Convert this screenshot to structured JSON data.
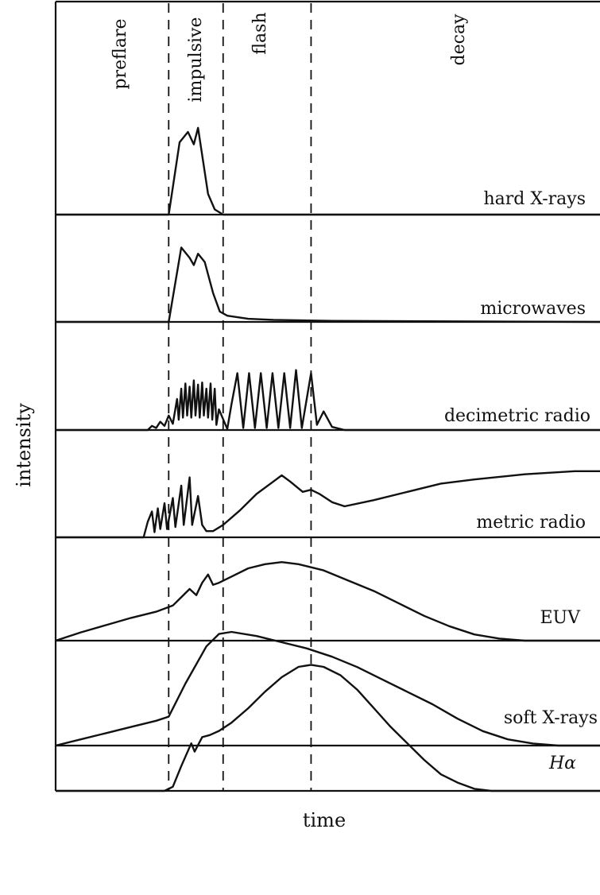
{
  "chart_data": {
    "type": "line",
    "xlabel": "time",
    "ylabel": "intensity",
    "phases": [
      "preflare",
      "impulsive",
      "flash",
      "decay"
    ],
    "panels": [
      {
        "label": "hard X-rays",
        "points": [
          [
            0,
            0
          ],
          [
            120,
            0
          ],
          [
            135,
            0
          ],
          [
            148,
            70
          ],
          [
            158,
            80
          ],
          [
            165,
            68
          ],
          [
            170,
            84
          ],
          [
            182,
            20
          ],
          [
            190,
            5
          ],
          [
            200,
            0
          ],
          [
            650,
            0
          ]
        ]
      },
      {
        "label": "microwaves",
        "points": [
          [
            0,
            0
          ],
          [
            120,
            0
          ],
          [
            135,
            0
          ],
          [
            150,
            72
          ],
          [
            160,
            62
          ],
          [
            165,
            55
          ],
          [
            170,
            66
          ],
          [
            178,
            58
          ],
          [
            188,
            28
          ],
          [
            196,
            10
          ],
          [
            205,
            6
          ],
          [
            230,
            3
          ],
          [
            260,
            2
          ],
          [
            330,
            1
          ],
          [
            650,
            0
          ]
        ]
      },
      {
        "label": "decimetric radio",
        "points": [
          [
            0,
            0
          ],
          [
            110,
            0
          ],
          [
            115,
            4
          ],
          [
            120,
            2
          ],
          [
            125,
            8
          ],
          [
            130,
            4
          ],
          [
            135,
            14
          ],
          [
            140,
            6
          ],
          [
            145,
            30
          ],
          [
            147,
            10
          ],
          [
            150,
            40
          ],
          [
            152,
            12
          ],
          [
            155,
            45
          ],
          [
            157,
            14
          ],
          [
            160,
            42
          ],
          [
            162,
            12
          ],
          [
            165,
            48
          ],
          [
            167,
            14
          ],
          [
            170,
            44
          ],
          [
            172,
            12
          ],
          [
            175,
            46
          ],
          [
            177,
            14
          ],
          [
            180,
            40
          ],
          [
            182,
            12
          ],
          [
            185,
            45
          ],
          [
            187,
            10
          ],
          [
            190,
            40
          ],
          [
            192,
            5
          ],
          [
            195,
            20
          ],
          [
            205,
            1
          ],
          [
            210,
            25
          ],
          [
            217,
            55
          ],
          [
            224,
            2
          ],
          [
            231,
            55
          ],
          [
            238,
            2
          ],
          [
            245,
            55
          ],
          [
            252,
            2
          ],
          [
            259,
            55
          ],
          [
            266,
            2
          ],
          [
            273,
            55
          ],
          [
            280,
            2
          ],
          [
            287,
            58
          ],
          [
            294,
            2
          ],
          [
            305,
            55
          ],
          [
            312,
            5
          ],
          [
            320,
            18
          ],
          [
            330,
            3
          ],
          [
            345,
            0
          ],
          [
            650,
            0
          ]
        ]
      },
      {
        "label": "metric radio",
        "points": [
          [
            0,
            0
          ],
          [
            105,
            0
          ],
          [
            110,
            15
          ],
          [
            115,
            25
          ],
          [
            118,
            5
          ],
          [
            122,
            28
          ],
          [
            125,
            8
          ],
          [
            130,
            33
          ],
          [
            133,
            8
          ],
          [
            140,
            38
          ],
          [
            143,
            10
          ],
          [
            150,
            50
          ],
          [
            153,
            12
          ],
          [
            160,
            58
          ],
          [
            163,
            12
          ],
          [
            170,
            40
          ],
          [
            175,
            12
          ],
          [
            180,
            6
          ],
          [
            188,
            6
          ],
          [
            200,
            12
          ],
          [
            220,
            26
          ],
          [
            240,
            42
          ],
          [
            260,
            54
          ],
          [
            270,
            60
          ],
          [
            280,
            54
          ],
          [
            295,
            44
          ],
          [
            305,
            46
          ],
          [
            315,
            42
          ],
          [
            330,
            34
          ],
          [
            345,
            30
          ],
          [
            380,
            36
          ],
          [
            420,
            44
          ],
          [
            460,
            52
          ],
          [
            500,
            56
          ],
          [
            560,
            61
          ],
          [
            620,
            64
          ],
          [
            650,
            64
          ]
        ]
      },
      {
        "label": "EUV",
        "points": [
          [
            0,
            0
          ],
          [
            30,
            8
          ],
          [
            60,
            15
          ],
          [
            90,
            22
          ],
          [
            120,
            28
          ],
          [
            140,
            34
          ],
          [
            150,
            42
          ],
          [
            160,
            50
          ],
          [
            168,
            44
          ],
          [
            175,
            56
          ],
          [
            182,
            64
          ],
          [
            188,
            54
          ],
          [
            195,
            56
          ],
          [
            210,
            62
          ],
          [
            230,
            70
          ],
          [
            250,
            74
          ],
          [
            270,
            76
          ],
          [
            290,
            74
          ],
          [
            320,
            68
          ],
          [
            350,
            58
          ],
          [
            380,
            48
          ],
          [
            410,
            36
          ],
          [
            440,
            24
          ],
          [
            470,
            14
          ],
          [
            500,
            6
          ],
          [
            530,
            2
          ],
          [
            560,
            0
          ],
          [
            650,
            0
          ]
        ]
      },
      {
        "label": "soft X-rays",
        "points": [
          [
            0,
            0
          ],
          [
            30,
            6
          ],
          [
            60,
            12
          ],
          [
            90,
            18
          ],
          [
            120,
            24
          ],
          [
            135,
            28
          ],
          [
            155,
            60
          ],
          [
            180,
            96
          ],
          [
            195,
            108
          ],
          [
            210,
            110
          ],
          [
            240,
            106
          ],
          [
            270,
            100
          ],
          [
            300,
            94
          ],
          [
            330,
            86
          ],
          [
            360,
            76
          ],
          [
            390,
            64
          ],
          [
            420,
            52
          ],
          [
            450,
            40
          ],
          [
            480,
            26
          ],
          [
            510,
            14
          ],
          [
            540,
            6
          ],
          [
            570,
            2
          ],
          [
            600,
            0
          ],
          [
            650,
            0
          ]
        ]
      },
      {
        "label": "Hα",
        "points": [
          [
            0,
            0
          ],
          [
            130,
            0
          ],
          [
            140,
            4
          ],
          [
            150,
            24
          ],
          [
            162,
            46
          ],
          [
            166,
            38
          ],
          [
            175,
            52
          ],
          [
            184,
            54
          ],
          [
            195,
            58
          ],
          [
            210,
            66
          ],
          [
            230,
            80
          ],
          [
            250,
            96
          ],
          [
            270,
            110
          ],
          [
            290,
            120
          ],
          [
            305,
            122
          ],
          [
            320,
            120
          ],
          [
            340,
            112
          ],
          [
            360,
            98
          ],
          [
            380,
            80
          ],
          [
            400,
            62
          ],
          [
            420,
            46
          ],
          [
            440,
            30
          ],
          [
            460,
            16
          ],
          [
            480,
            8
          ],
          [
            500,
            2
          ],
          [
            520,
            0
          ],
          [
            650,
            0
          ]
        ]
      }
    ],
    "divider_times": [
      135,
      200,
      305
    ],
    "xlim": [
      0,
      650
    ]
  }
}
